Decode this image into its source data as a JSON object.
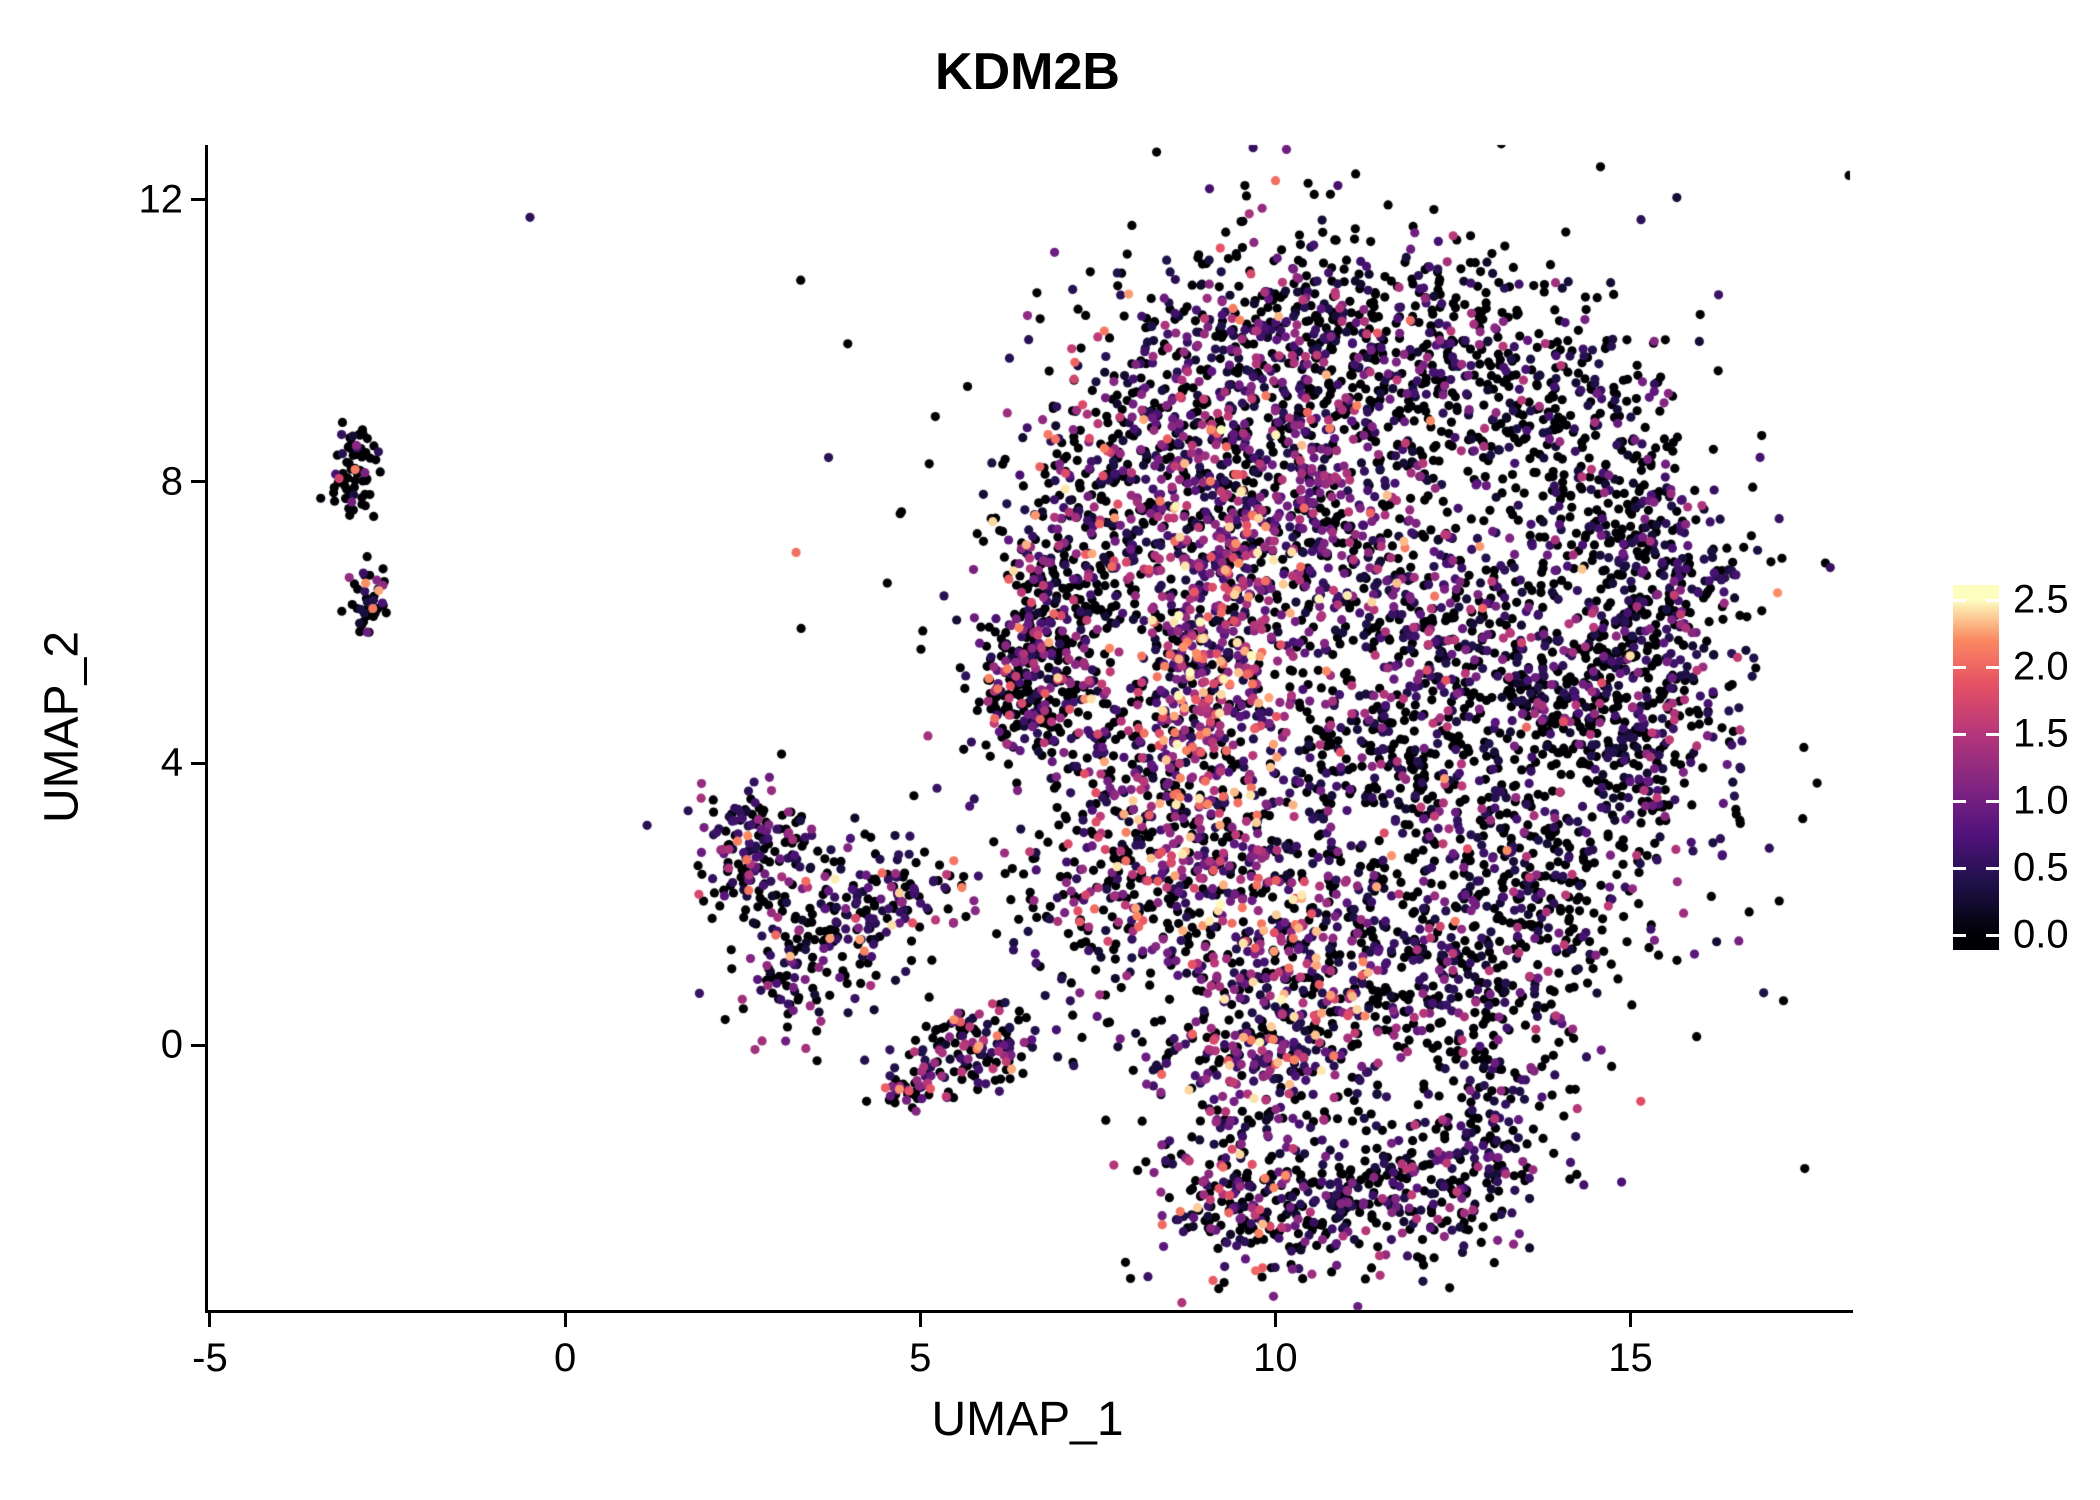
{
  "figure": {
    "background": "#ffffff"
  },
  "chart_data": {
    "type": "scatter",
    "title": "KDM2B",
    "xlabel": "UMAP_1",
    "ylabel": "UMAP_2",
    "xlim": [
      -5.07,
      18.09
    ],
    "ylim": [
      -3.76,
      12.78
    ],
    "xticks": [
      -5,
      0,
      5,
      10,
      15
    ],
    "xtick_labels": [
      "-5",
      "0",
      "5",
      "10",
      "15"
    ],
    "yticks": [
      0,
      4,
      8,
      12
    ],
    "ytick_labels": [
      "0",
      "4",
      "8",
      "12"
    ],
    "grid": false,
    "legend_position": "right",
    "point_radius_px": 4.6,
    "seed": 42,
    "colorbar": {
      "min": 0.0,
      "max": 2.5,
      "ticks": [
        0.0,
        0.5,
        1.0,
        1.5,
        2.0,
        2.5
      ],
      "tick_labels": [
        "0.0",
        "0.5",
        "1.0",
        "1.5",
        "2.0",
        "2.5"
      ],
      "colormap": "magma",
      "stops": [
        [
          0.0,
          "#000004"
        ],
        [
          0.15,
          "#1d1147"
        ],
        [
          0.3,
          "#51127c"
        ],
        [
          0.45,
          "#822681"
        ],
        [
          0.6,
          "#b5367a"
        ],
        [
          0.75,
          "#e65164"
        ],
        [
          0.88,
          "#fb8861"
        ],
        [
          1.0,
          "#fcfdbf"
        ]
      ]
    },
    "expression_bins": {
      "zero": 0,
      "low": [
        0.2,
        0.7
      ],
      "mid": [
        0.8,
        1.6
      ],
      "high": [
        1.7,
        2.5
      ]
    },
    "clusters": [
      {
        "center": [
          6.6,
          5.1
        ],
        "sd": [
          0.45,
          0.5
        ],
        "n": 260,
        "mix": [
          0.5,
          0.2,
          0.22,
          0.08
        ]
      },
      {
        "center": [
          6.9,
          6.4
        ],
        "sd": [
          0.5,
          0.6
        ],
        "n": 200,
        "mix": [
          0.58,
          0.2,
          0.17,
          0.05
        ]
      },
      {
        "center": [
          7.6,
          7.8
        ],
        "sd": [
          0.7,
          0.7
        ],
        "n": 180,
        "mix": [
          0.45,
          0.25,
          0.25,
          0.05
        ]
      },
      {
        "center": [
          8.6,
          9.2
        ],
        "sd": [
          0.8,
          0.8
        ],
        "n": 230,
        "mix": [
          0.4,
          0.25,
          0.3,
          0.05
        ]
      },
      {
        "center": [
          10.2,
          10.3
        ],
        "sd": [
          1.0,
          0.75
        ],
        "n": 260,
        "mix": [
          0.5,
          0.3,
          0.18,
          0.02
        ]
      },
      {
        "center": [
          12.0,
          10.0
        ],
        "sd": [
          0.9,
          0.7
        ],
        "n": 200,
        "mix": [
          0.62,
          0.28,
          0.1,
          0.0
        ]
      },
      {
        "center": [
          13.6,
          8.8
        ],
        "sd": [
          0.8,
          0.8
        ],
        "n": 180,
        "mix": [
          0.65,
          0.25,
          0.1,
          0.0
        ]
      },
      {
        "center": [
          9.2,
          6.8
        ],
        "sd": [
          0.6,
          1.0
        ],
        "n": 280,
        "mix": [
          0.2,
          0.2,
          0.38,
          0.22
        ]
      },
      {
        "center": [
          9.0,
          5.2
        ],
        "sd": [
          0.5,
          0.8
        ],
        "n": 240,
        "mix": [
          0.22,
          0.2,
          0.36,
          0.22
        ]
      },
      {
        "center": [
          10.3,
          7.8
        ],
        "sd": [
          0.8,
          0.8
        ],
        "n": 220,
        "mix": [
          0.35,
          0.3,
          0.3,
          0.05
        ]
      },
      {
        "center": [
          11.5,
          6.5
        ],
        "sd": [
          0.9,
          0.8
        ],
        "n": 200,
        "mix": [
          0.4,
          0.35,
          0.22,
          0.03
        ]
      },
      {
        "center": [
          12.8,
          5.5
        ],
        "sd": [
          0.9,
          0.8
        ],
        "n": 220,
        "mix": [
          0.5,
          0.3,
          0.18,
          0.02
        ]
      },
      {
        "center": [
          14.3,
          5.0
        ],
        "sd": [
          0.7,
          0.8
        ],
        "n": 260,
        "mix": [
          0.62,
          0.24,
          0.12,
          0.02
        ]
      },
      {
        "center": [
          15.5,
          6.2
        ],
        "sd": [
          0.6,
          0.9
        ],
        "n": 240,
        "mix": [
          0.5,
          0.35,
          0.15,
          0.0
        ]
      },
      {
        "center": [
          15.3,
          4.0
        ],
        "sd": [
          0.6,
          0.8
        ],
        "n": 160,
        "mix": [
          0.55,
          0.3,
          0.15,
          0.0
        ]
      },
      {
        "center": [
          13.6,
          2.2
        ],
        "sd": [
          0.7,
          0.8
        ],
        "n": 220,
        "mix": [
          0.66,
          0.22,
          0.1,
          0.02
        ]
      },
      {
        "center": [
          12.0,
          1.2
        ],
        "sd": [
          0.9,
          0.8
        ],
        "n": 220,
        "mix": [
          0.5,
          0.28,
          0.2,
          0.02
        ]
      },
      {
        "center": [
          10.2,
          1.0
        ],
        "sd": [
          0.7,
          0.9
        ],
        "n": 280,
        "mix": [
          0.3,
          0.25,
          0.3,
          0.15
        ]
      },
      {
        "center": [
          9.3,
          2.5
        ],
        "sd": [
          0.7,
          0.9
        ],
        "n": 240,
        "mix": [
          0.3,
          0.25,
          0.3,
          0.15
        ]
      },
      {
        "center": [
          8.2,
          3.8
        ],
        "sd": [
          0.7,
          0.9
        ],
        "n": 220,
        "mix": [
          0.35,
          0.25,
          0.3,
          0.1
        ]
      },
      {
        "center": [
          7.5,
          2.0
        ],
        "sd": [
          0.6,
          0.7
        ],
        "n": 140,
        "mix": [
          0.5,
          0.25,
          0.2,
          0.05
        ]
      },
      {
        "center": [
          11.0,
          4.2
        ],
        "sd": [
          0.8,
          0.7
        ],
        "n": 150,
        "mix": [
          0.45,
          0.3,
          0.2,
          0.05
        ]
      },
      {
        "center": [
          10.8,
          9.0
        ],
        "sd": [
          1.2,
          1.0
        ],
        "n": 200,
        "mix": [
          0.5,
          0.3,
          0.18,
          0.02
        ]
      },
      {
        "center": [
          14.8,
          7.6
        ],
        "sd": [
          0.7,
          0.7
        ],
        "n": 160,
        "mix": [
          0.55,
          0.3,
          0.15,
          0.0
        ]
      },
      {
        "center": [
          12.5,
          3.6
        ],
        "sd": [
          0.8,
          0.6
        ],
        "n": 100,
        "mix": [
          0.55,
          0.3,
          0.15,
          0.0
        ]
      },
      {
        "center": [
          9.8,
          -0.2
        ],
        "sd": [
          1.0,
          0.5
        ],
        "n": 180,
        "mix": [
          0.45,
          0.25,
          0.25,
          0.05
        ]
      },
      {
        "center": [
          13.0,
          0.3
        ],
        "sd": [
          0.7,
          0.6
        ],
        "n": 120,
        "mix": [
          0.6,
          0.25,
          0.15,
          0.0
        ]
      },
      {
        "center": [
          13.8,
          9.6
        ],
        "sd": [
          1.0,
          0.6
        ],
        "n": 80,
        "mix": [
          0.7,
          0.25,
          0.05,
          0.0
        ]
      },
      {
        "center": [
          11.0,
          5.0
        ],
        "sd": [
          3.0,
          3.2
        ],
        "n": 700,
        "mix": [
          0.58,
          0.25,
          0.15,
          0.02
        ]
      },
      {
        "center": [
          9.3,
          -2.0
        ],
        "sd": [
          0.6,
          0.6
        ],
        "n": 160,
        "mix": [
          0.4,
          0.25,
          0.25,
          0.1
        ]
      },
      {
        "center": [
          10.5,
          -2.3
        ],
        "sd": [
          0.8,
          0.5
        ],
        "n": 180,
        "mix": [
          0.5,
          0.3,
          0.18,
          0.02
        ]
      },
      {
        "center": [
          12.0,
          -2.0
        ],
        "sd": [
          0.8,
          0.5
        ],
        "n": 160,
        "mix": [
          0.55,
          0.3,
          0.15,
          0.0
        ]
      },
      {
        "center": [
          13.0,
          -1.4
        ],
        "sd": [
          0.5,
          0.5
        ],
        "n": 100,
        "mix": [
          0.5,
          0.35,
          0.15,
          0.0
        ]
      },
      {
        "center": [
          -2.95,
          8.1
        ],
        "sd": [
          0.18,
          0.45
        ],
        "n": 70,
        "mix": [
          0.7,
          0.14,
          0.12,
          0.04
        ]
      },
      {
        "center": [
          -2.75,
          6.35
        ],
        "sd": [
          0.15,
          0.25
        ],
        "n": 40,
        "mix": [
          0.55,
          0.2,
          0.2,
          0.05
        ]
      },
      {
        "center": [
          2.7,
          2.8
        ],
        "sd": [
          0.45,
          0.5
        ],
        "n": 150,
        "mix": [
          0.45,
          0.3,
          0.2,
          0.05
        ]
      },
      {
        "center": [
          3.6,
          1.8
        ],
        "sd": [
          0.6,
          0.6
        ],
        "n": 130,
        "mix": [
          0.5,
          0.3,
          0.15,
          0.05
        ]
      },
      {
        "center": [
          4.8,
          2.2
        ],
        "sd": [
          0.6,
          0.4
        ],
        "n": 90,
        "mix": [
          0.45,
          0.3,
          0.2,
          0.05
        ]
      },
      {
        "center": [
          3.2,
          0.9
        ],
        "sd": [
          0.5,
          0.4
        ],
        "n": 60,
        "mix": [
          0.5,
          0.3,
          0.2,
          0.0
        ]
      },
      {
        "center": [
          6.0,
          0.0
        ],
        "sd": [
          0.35,
          0.3
        ],
        "n": 90,
        "mix": [
          0.5,
          0.25,
          0.2,
          0.05
        ]
      },
      {
        "center": [
          4.9,
          -0.55
        ],
        "sd": [
          0.25,
          0.2
        ],
        "n": 50,
        "mix": [
          0.4,
          0.25,
          0.25,
          0.1
        ]
      },
      {
        "center": [
          5.4,
          -0.2
        ],
        "sd": [
          0.4,
          0.3
        ],
        "n": 40,
        "mix": [
          0.55,
          0.25,
          0.2,
          0.0
        ]
      },
      {
        "center": [
          15.3,
          9.3
        ],
        "sd": [
          0.06,
          0.06
        ],
        "n": 3,
        "mix": [
          0.3,
          0.0,
          0.7,
          0.0
        ]
      }
    ]
  }
}
